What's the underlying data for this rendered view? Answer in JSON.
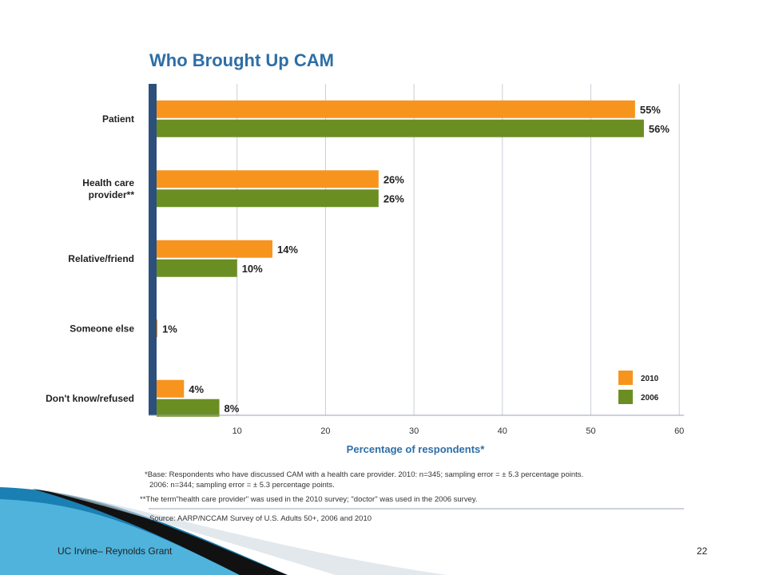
{
  "chart_data": {
    "type": "bar",
    "orientation": "horizontal",
    "title": "Who Brought Up CAM",
    "xlabel": "Percentage of respondents*",
    "categories": [
      [
        "Patient"
      ],
      [
        "Health care",
        "provider**"
      ],
      [
        "Relative/friend"
      ],
      [
        "Someone else"
      ],
      [
        "Don't know/refused"
      ]
    ],
    "series": [
      {
        "name": "2010",
        "color": "#f7941d",
        "values": [
          55,
          26,
          14,
          1,
          4
        ]
      },
      {
        "name": "2006",
        "color": "#6b8e23",
        "values": [
          56,
          26,
          10,
          null,
          8
        ]
      }
    ],
    "xlim": [
      0,
      60
    ],
    "xticks": [
      10,
      20,
      30,
      40,
      50,
      60
    ],
    "grid": true,
    "legend_position": "bottom-right"
  },
  "notes": {
    "base_line1": "*Base: Respondents who have discussed CAM with a health care provider. 2010: n=345; sampling error = ± 5.3 percentage points.",
    "base_line2": "2006: n=344; sampling error = ± 5.3 percentage points.",
    "term_note": "**The term\"health care provider\" was used in the 2010 survey; \"doctor\" was used in the 2006 survey.",
    "source": "Source: AARP/NCCAM Survey of U.S. Adults 50+, 2006 and 2010"
  },
  "footer": {
    "left": "UC Irvine– Reynolds Grant",
    "page_number": "22"
  },
  "colors": {
    "axis_bar": "#2c4f7c",
    "title": "#2e6ea6",
    "slide_accent": "#1a7fb3"
  }
}
